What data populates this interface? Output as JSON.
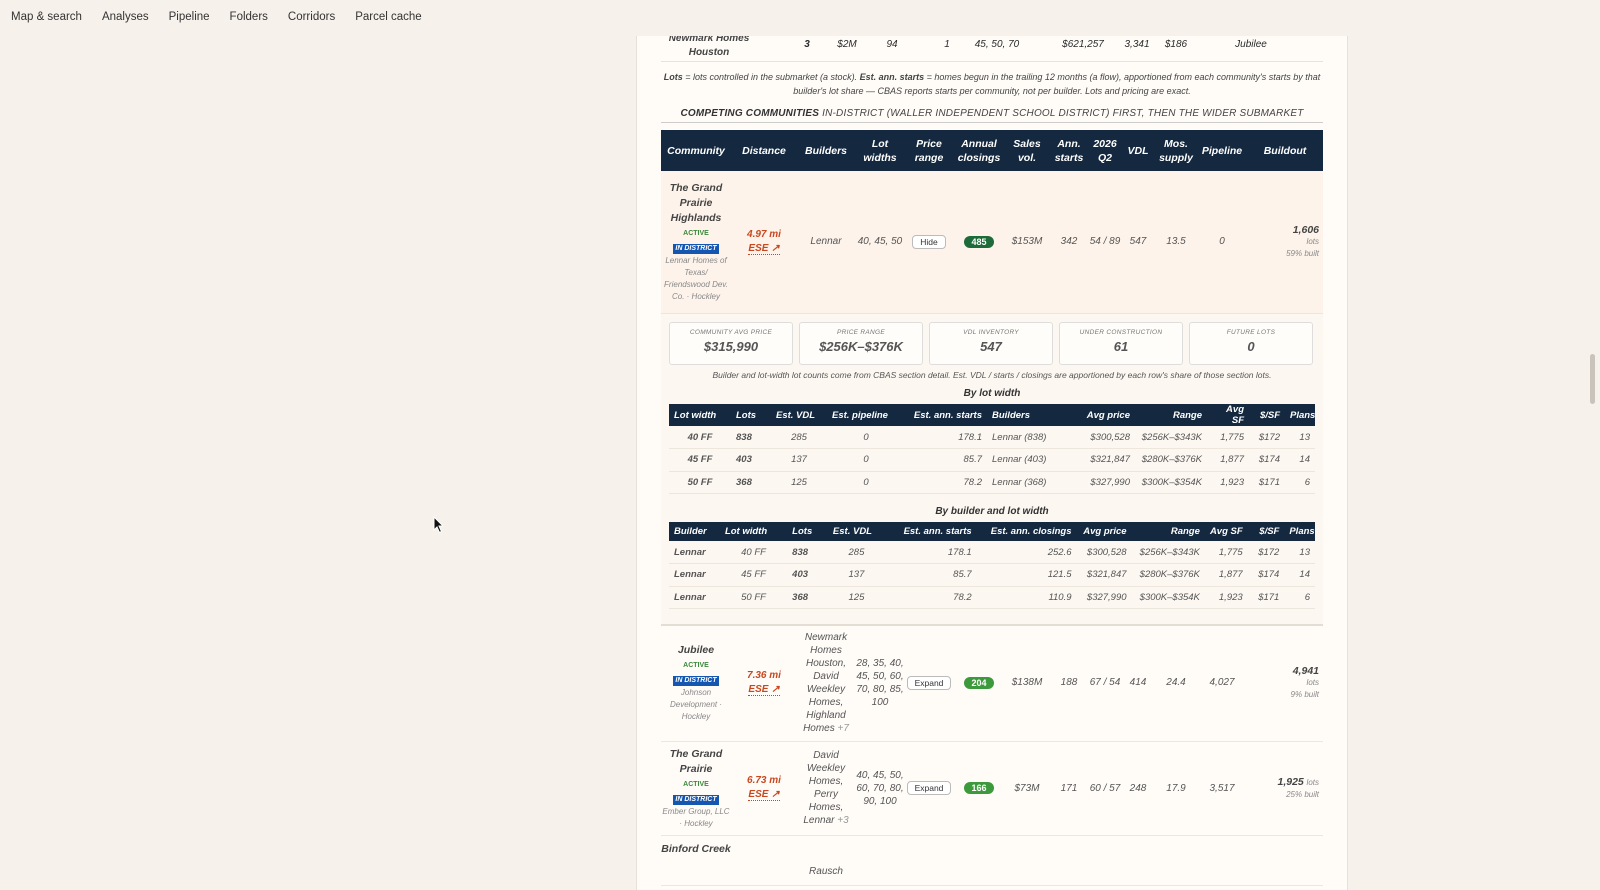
{
  "nav": [
    "Map & search",
    "Analyses",
    "Pipeline",
    "Folders",
    "Corridors",
    "Parcel cache"
  ],
  "builder_row": {
    "name": "Newmark Homes Houston",
    "communities": "3",
    "volume": "$2M",
    "lots": "94",
    "starts": "1",
    "widths": "45, 50, 70",
    "avg_price": "$621,257",
    "avg_sf": "3,341",
    "ppsf": "$186",
    "top_community": "Jubilee"
  },
  "note_parts": [
    "Lots",
    " = lots controlled in the submarket (a stock). ",
    "Est. ann. starts",
    " = homes begun in the trailing 12 months (a flow), apportioned from each community's starts by that builder's lot share — CBAS reports starts per community, not per builder. Lots and pricing are exact."
  ],
  "section": {
    "title": "COMPETING COMMUNITIES",
    "subtitle": "IN-DISTRICT (WALLER INDEPENDENT SCHOOL DISTRICT) FIRST, THEN THE WIDER SUBMARKET"
  },
  "headers": [
    "Community",
    "Distance",
    "Builders",
    "Lot widths",
    "Price range",
    "Annual closings",
    "Sales vol.",
    "Ann. starts",
    "2026 Q2",
    "VDL",
    "Mos. supply",
    "Pipeline",
    "Buildout"
  ],
  "active_label": "ACTIVE",
  "in_district_label": "IN DISTRICT",
  "lots_label": "lots",
  "communities": [
    {
      "name": "The Grand Prairie Highlands",
      "developer": "Lennar Homes of Texas/ Friendswood Dev. Co. · Hockley",
      "distance": "4.97 mi",
      "direction": "ESE ↗",
      "builders": "Lennar",
      "builders_more": "",
      "lot_widths": "40, 45, 50",
      "button": "Hide",
      "closings": "485",
      "closings_color": "#1e6b3a",
      "sales_vol": "$153M",
      "starts": "342",
      "q2": "54 / 89",
      "vdl": "547",
      "mos_supply": "13.5",
      "pipeline": "0",
      "buildout_lots": "1,606",
      "built": "59% built"
    },
    {
      "name": "Jubilee",
      "developer": "Johnson Development · Hockley",
      "distance": "7.36 mi",
      "direction": "ESE ↗",
      "builders": "Newmark Homes Houston, David Weekley Homes, Highland Homes",
      "builders_more": "+7",
      "lot_widths": "28, 35, 40, 45, 50, 60, 70, 80, 85, 100",
      "button": "Expand",
      "closings": "204",
      "closings_color": "#3c9a3c",
      "sales_vol": "$138M",
      "starts": "188",
      "q2": "67 / 54",
      "vdl": "414",
      "mos_supply": "24.4",
      "pipeline": "4,027",
      "buildout_lots": "4,941",
      "built": "9% built"
    },
    {
      "name": "The Grand Prairie",
      "developer": "Ember Group, LLC · Hockley",
      "distance": "6.73 mi",
      "direction": "ESE ↗",
      "builders": "David Weekley Homes, Perry Homes, Lennar",
      "builders_more": "+3",
      "lot_widths": "40, 45, 50, 60, 70, 80, 90, 100",
      "button": "Expand",
      "closings": "166",
      "closings_color": "#3c9a3c",
      "sales_vol": "$73M",
      "starts": "171",
      "q2": "60 / 57",
      "vdl": "248",
      "mos_supply": "17.9",
      "pipeline": "3,517",
      "buildout_lots": "1,925",
      "built": "25% built"
    },
    {
      "name": "Binford Creek",
      "builders": "Rausch"
    }
  ],
  "cards": [
    {
      "label": "COMMUNITY AVG PRICE",
      "value": "$315,990"
    },
    {
      "label": "PRICE RANGE",
      "value": "$256K–$376K"
    },
    {
      "label": "VDL INVENTORY",
      "value": "547"
    },
    {
      "label": "UNDER CONSTRUCTION",
      "value": "61"
    },
    {
      "label": "FUTURE LOTS",
      "value": "0"
    }
  ],
  "detail_note": "Builder and lot-width lot counts come from CBAS section detail. Est. VDL / starts / closings are apportioned by each row's share of those section lots.",
  "by_lot_width": {
    "title": "By lot width",
    "headers": [
      "Lot width",
      "Lots",
      "Est. VDL",
      "Est. pipeline",
      "Est. ann. starts",
      "Builders",
      "Avg price",
      "Range",
      "Avg SF",
      "$/SF",
      "Plans"
    ],
    "rows": [
      [
        "40 FF",
        "838",
        "285",
        "0",
        "178.1",
        "Lennar (838)",
        "$300,528",
        "$256K–$343K",
        "1,775",
        "$172",
        "13"
      ],
      [
        "45 FF",
        "403",
        "137",
        "0",
        "85.7",
        "Lennar (403)",
        "$321,847",
        "$280K–$376K",
        "1,877",
        "$174",
        "14"
      ],
      [
        "50 FF",
        "368",
        "125",
        "0",
        "78.2",
        "Lennar (368)",
        "$327,990",
        "$300K–$354K",
        "1,923",
        "$171",
        "6"
      ]
    ]
  },
  "by_builder": {
    "title": "By builder and lot width",
    "headers": [
      "Builder",
      "Lot width",
      "Lots",
      "Est. VDL",
      "Est. ann. starts",
      "Est. ann. closings",
      "Avg price",
      "Range",
      "Avg SF",
      "$/SF",
      "Plans"
    ],
    "rows": [
      [
        "Lennar",
        "40 FF",
        "838",
        "285",
        "178.1",
        "252.6",
        "$300,528",
        "$256K–$343K",
        "1,775",
        "$172",
        "13"
      ],
      [
        "Lennar",
        "45 FF",
        "403",
        "137",
        "85.7",
        "121.5",
        "$321,847",
        "$280K–$376K",
        "1,877",
        "$174",
        "14"
      ],
      [
        "Lennar",
        "50 FF",
        "368",
        "125",
        "78.2",
        "110.9",
        "$327,990",
        "$300K–$354K",
        "1,923",
        "$171",
        "6"
      ]
    ]
  },
  "colors": {
    "header_bg": "#14283f",
    "accent_red": "#c9471f",
    "in_district_blue": "#1557b0",
    "panel_bg": "#fffcf8",
    "page_bg": "#f6f1ea"
  }
}
